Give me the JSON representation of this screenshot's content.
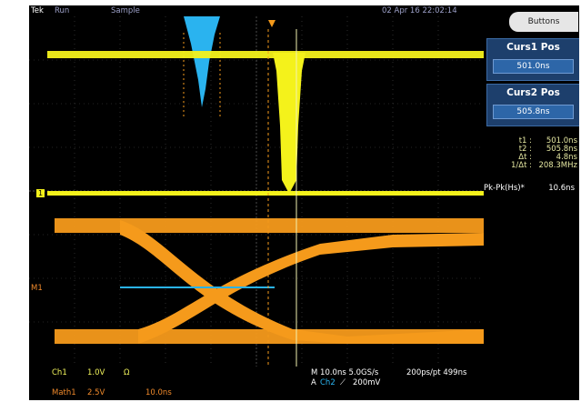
{
  "top_bar": {
    "brand": "Tek",
    "run_state": "Run",
    "acq_mode": "Sample",
    "datetime": "02 Apr 16 22:02:14"
  },
  "buttons_label": "Buttons",
  "cursor1": {
    "title": "Curs1 Pos",
    "value": "501.0ns"
  },
  "cursor2": {
    "title": "Curs2 Pos",
    "value": "505.8ns"
  },
  "readout": [
    {
      "label": "t1 :",
      "value": "501.0ns"
    },
    {
      "label": "t2 :",
      "value": "505.8ns"
    },
    {
      "label": "Δt :",
      "value": "4.8ns"
    },
    {
      "label": "1/Δt :",
      "value": "208.3MHz"
    }
  ],
  "measurement": {
    "label": "Pk-Pk(Hs)*",
    "value": "10.6ns"
  },
  "markers": {
    "ch1": "1",
    "math1": "M1"
  },
  "bottom": {
    "ch1_name": "Ch1",
    "ch1_scale": "1.0V",
    "ch1_coupling": "Ω",
    "math_name": "Math1",
    "math_scale": "2.5V",
    "math_time": "10.0ns",
    "timebase": "M 10.0ns 5.0GS/s",
    "record": "200ps/pt 499ns",
    "trigger_src": "A",
    "trigger_ch": "Ch2",
    "trigger_slope": "⟋",
    "trigger_level": "200mV"
  },
  "colors": {
    "ch1": "#f4f21b",
    "math": "#f59a1b",
    "ref": "#2ab3ef",
    "cursor_line": "#f2f2b0"
  }
}
